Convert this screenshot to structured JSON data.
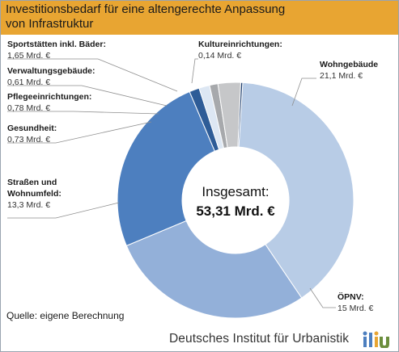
{
  "header": {
    "title": "Investitionsbedarf für eine altengerechte Anpassung\nvon Infrastruktur",
    "color": "#e8a532"
  },
  "chart_data": {
    "type": "pie",
    "variant": "donut",
    "title": "Investitionsbedarf für eine altengerechte Anpassung von Infrastruktur",
    "total_label": "Insgesamt:",
    "total_value": "53,31 Mrd. €",
    "unit": "Mrd. €",
    "slices": [
      {
        "name": "Wohngebäude",
        "value": 21.1,
        "value_label": "21,1 Mrd. €",
        "color": "#b8cce6"
      },
      {
        "name": "ÖPNV:",
        "value": 15,
        "value_label": "15 Mrd. €",
        "color": "#93b0d9"
      },
      {
        "name": "Straßen und Wohnumfeld:",
        "name_lines": [
          "Straßen und",
          "Wohnumfeld:"
        ],
        "value": 13.3,
        "value_label": "13,3 Mrd. €",
        "color": "#4d7fbf"
      },
      {
        "name": "Gesundheit:",
        "value": 0.73,
        "value_label": "0,73 Mrd. €",
        "color": "#2e5c97"
      },
      {
        "name": "Pflegeeinrichtungen:",
        "value": 0.78,
        "value_label": "0,78 Mrd. €",
        "color": "#dde7f3"
      },
      {
        "name": "Verwaltungsgebäude:",
        "value": 0.61,
        "value_label": "0,61 Mrd. €",
        "color": "#a7a9ac"
      },
      {
        "name": "Sportstätten inkl. Bäder:",
        "value": 1.65,
        "value_label": "1,65 Mrd. €",
        "color": "#c6c7c9"
      },
      {
        "name": "Kultureinrichtungen:",
        "value": 0.14,
        "value_label": "0,14 Mrd. €",
        "color": "#1f3f6e"
      }
    ]
  },
  "footer": {
    "source": "Quelle: eigene Berechnung",
    "institute": "Deutsches Institut für Urbanistik",
    "logo_colors": [
      "#4d7fbf",
      "#e8a532",
      "#6b8e3d"
    ]
  }
}
